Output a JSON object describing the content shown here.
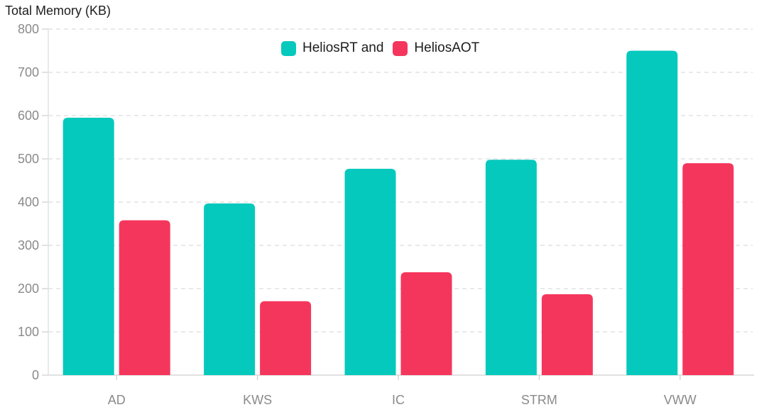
{
  "chart_data": {
    "type": "bar",
    "title": "Total Memory (KB)",
    "categories": [
      "AD",
      "KWS",
      "IC",
      "STRM",
      "VWW"
    ],
    "series": [
      {
        "name": "HeliosRT and",
        "color": "#06C9BD",
        "values": [
          595,
          397,
          477,
          498,
          750
        ]
      },
      {
        "name": "HeliosAOT",
        "color": "#F5365C",
        "values": [
          358,
          171,
          238,
          187,
          490
        ]
      }
    ],
    "ylabel": "Total Memory (KB)",
    "xlabel": "",
    "ylim": [
      0,
      800
    ],
    "ytick_step": 100,
    "ytick_labels": [
      "0",
      "100",
      "200",
      "300",
      "400",
      "500",
      "600",
      "700",
      "800"
    ],
    "grid": "horizontal-dashed",
    "legend_position": "top-center"
  },
  "colors": {
    "grid": "#E2E2E2",
    "axis_line": "#E2E2E2",
    "tick": "#D4D4D4",
    "axis_label": "#8A8A8A",
    "title_text": "#1D1D1D",
    "background": "#FFFFFF"
  }
}
